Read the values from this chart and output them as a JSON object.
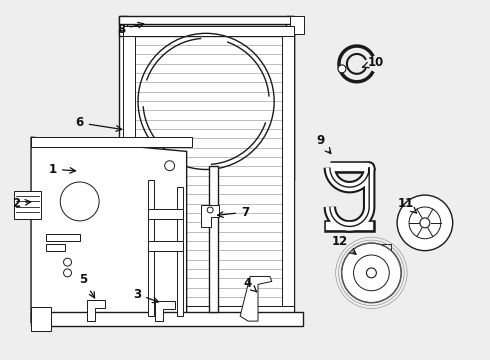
{
  "bg_color": "#eeeeee",
  "line_color": "#1a1a1a",
  "label_color": "#111111",
  "figsize": [
    4.9,
    3.6
  ],
  "dpi": 100,
  "labels": {
    "1": [
      0.115,
      0.475,
      0.175,
      0.49
    ],
    "2": [
      0.04,
      0.57,
      0.08,
      0.575
    ],
    "3": [
      0.29,
      0.82,
      0.34,
      0.85
    ],
    "4": [
      0.51,
      0.79,
      0.56,
      0.83
    ],
    "5": [
      0.18,
      0.78,
      0.215,
      0.845
    ],
    "6": [
      0.175,
      0.34,
      0.24,
      0.37
    ],
    "7": [
      0.5,
      0.59,
      0.455,
      0.61
    ],
    "8": [
      0.245,
      0.078,
      0.305,
      0.06
    ],
    "9": [
      0.66,
      0.385,
      0.68,
      0.43
    ],
    "10": [
      0.76,
      0.175,
      0.73,
      0.185
    ],
    "11": [
      0.83,
      0.57,
      0.855,
      0.6
    ],
    "12": [
      0.7,
      0.67,
      0.73,
      0.71
    ]
  }
}
